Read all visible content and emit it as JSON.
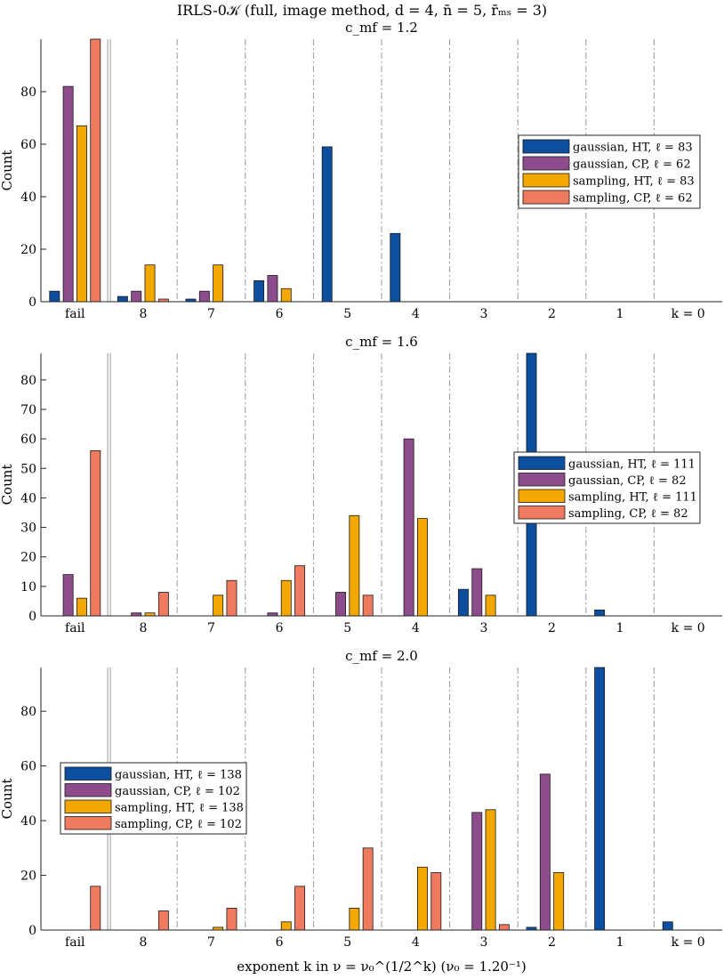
{
  "figure": {
    "title": "IRLS-0𝒦 (full, image method, d = 4, n̄ = 5, r̄ₘₛ = 3)",
    "xlabel": "exponent k in ν = ν₀^(1/2^k) (ν₀ = 1.20⁻¹)",
    "ylabel": "Count"
  },
  "colors": {
    "gaussian_HT": "#0b4f9e",
    "gaussian_CP": "#8d4d8c",
    "sampling_HT": "#f2a800",
    "sampling_CP": "#ee7a5f",
    "grid": "#9a9a9a",
    "axis": "#262626"
  },
  "chart_data": [
    {
      "type": "bar",
      "title": "c_mf = 1.2",
      "ylabel": "Count",
      "xlabel": "",
      "ylim": [
        0,
        100
      ],
      "yticks": [
        0,
        20,
        40,
        60,
        80
      ],
      "categories": [
        "fail",
        "8",
        "7",
        "6",
        "5",
        "4",
        "3",
        "2",
        "1",
        "k = 0"
      ],
      "legend_position": "top-right",
      "series": [
        {
          "name": "gaussian, HT, ℓ = 83",
          "color_key": "gaussian_HT",
          "values": [
            4,
            2,
            1,
            8,
            59,
            26,
            0,
            0,
            0,
            0
          ]
        },
        {
          "name": "gaussian, CP, ℓ = 62",
          "color_key": "gaussian_CP",
          "values": [
            82,
            4,
            4,
            10,
            0,
            0,
            0,
            0,
            0,
            0
          ]
        },
        {
          "name": "sampling, HT, ℓ = 83",
          "color_key": "sampling_HT",
          "values": [
            67,
            14,
            14,
            5,
            0,
            0,
            0,
            0,
            0,
            0
          ]
        },
        {
          "name": "sampling, CP, ℓ = 62",
          "color_key": "sampling_CP",
          "values": [
            100,
            1,
            0,
            0,
            0,
            0,
            0,
            0,
            0,
            0
          ]
        }
      ]
    },
    {
      "type": "bar",
      "title": "c_mf = 1.6",
      "ylabel": "Count",
      "xlabel": "",
      "ylim": [
        0,
        89
      ],
      "yticks": [
        0,
        10,
        20,
        30,
        40,
        50,
        60,
        70,
        80
      ],
      "categories": [
        "fail",
        "8",
        "7",
        "6",
        "5",
        "4",
        "3",
        "2",
        "1",
        "k = 0"
      ],
      "legend_position": "right",
      "series": [
        {
          "name": "gaussian, HT, ℓ = 111",
          "color_key": "gaussian_HT",
          "values": [
            0,
            0,
            0,
            0,
            0,
            0,
            9,
            89,
            2,
            0
          ]
        },
        {
          "name": "gaussian, CP, ℓ = 82",
          "color_key": "gaussian_CP",
          "values": [
            14,
            1,
            0,
            1,
            8,
            60,
            16,
            0,
            0,
            0
          ]
        },
        {
          "name": "sampling, HT, ℓ = 111",
          "color_key": "sampling_HT",
          "values": [
            6,
            1,
            7,
            12,
            34,
            33,
            7,
            0,
            0,
            0
          ]
        },
        {
          "name": "sampling, CP, ℓ = 82",
          "color_key": "sampling_CP",
          "values": [
            56,
            8,
            12,
            17,
            7,
            0,
            0,
            0,
            0,
            0
          ]
        }
      ]
    },
    {
      "type": "bar",
      "title": "c_mf = 2.0",
      "ylabel": "Count",
      "xlabel": "exponent k in ν = ν₀^(1/2^k) (ν₀ = 1.20⁻¹)",
      "ylim": [
        0,
        96
      ],
      "yticks": [
        0,
        20,
        40,
        60,
        80
      ],
      "categories": [
        "fail",
        "8",
        "7",
        "6",
        "5",
        "4",
        "3",
        "2",
        "1",
        "k = 0"
      ],
      "legend_position": "left",
      "series": [
        {
          "name": "gaussian, HT, ℓ = 138",
          "color_key": "gaussian_HT",
          "values": [
            0,
            0,
            0,
            0,
            0,
            0,
            0,
            1,
            96,
            3
          ]
        },
        {
          "name": "gaussian, CP, ℓ = 102",
          "color_key": "gaussian_CP",
          "values": [
            0,
            0,
            0,
            0,
            0,
            0,
            43,
            57,
            0,
            0
          ]
        },
        {
          "name": "sampling, HT, ℓ = 138",
          "color_key": "sampling_HT",
          "values": [
            0,
            0,
            1,
            3,
            8,
            23,
            44,
            21,
            0,
            0
          ]
        },
        {
          "name": "sampling, CP, ℓ = 102",
          "color_key": "sampling_CP",
          "values": [
            16,
            7,
            8,
            16,
            30,
            21,
            2,
            0,
            0,
            0
          ]
        }
      ]
    }
  ]
}
